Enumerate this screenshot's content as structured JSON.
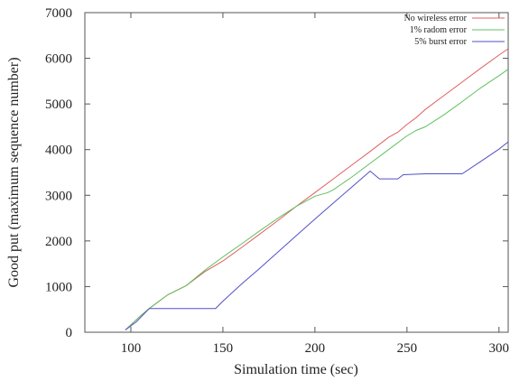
{
  "chart_data": {
    "type": "line",
    "title": "",
    "xlabel": "Simulation time (sec)",
    "ylabel": "Good put (maximum sequence number)",
    "xlim": [
      75,
      305
    ],
    "ylim": [
      0,
      7000
    ],
    "xticks": [
      100,
      150,
      200,
      250,
      300
    ],
    "yticks": [
      0,
      1000,
      2000,
      3000,
      4000,
      5000,
      6000,
      7000
    ],
    "legend_position": "top-right",
    "grid": false,
    "series": [
      {
        "name": "No wireless error",
        "color": "#e06060",
        "points": [
          [
            97,
            50
          ],
          [
            105,
            350
          ],
          [
            110,
            520
          ],
          [
            120,
            820
          ],
          [
            130,
            1020
          ],
          [
            140,
            1320
          ],
          [
            150,
            1560
          ],
          [
            160,
            1850
          ],
          [
            170,
            2150
          ],
          [
            180,
            2450
          ],
          [
            190,
            2760
          ],
          [
            200,
            3060
          ],
          [
            210,
            3360
          ],
          [
            220,
            3660
          ],
          [
            230,
            3960
          ],
          [
            240,
            4270
          ],
          [
            245,
            4380
          ],
          [
            250,
            4550
          ],
          [
            255,
            4700
          ],
          [
            260,
            4880
          ],
          [
            270,
            5180
          ],
          [
            280,
            5480
          ],
          [
            290,
            5780
          ],
          [
            300,
            6070
          ],
          [
            305,
            6210
          ]
        ]
      },
      {
        "name": "1% radom error",
        "color": "#60c060",
        "points": [
          [
            97,
            50
          ],
          [
            105,
            350
          ],
          [
            110,
            520
          ],
          [
            120,
            820
          ],
          [
            130,
            1020
          ],
          [
            140,
            1350
          ],
          [
            150,
            1650
          ],
          [
            160,
            1930
          ],
          [
            170,
            2220
          ],
          [
            180,
            2500
          ],
          [
            190,
            2760
          ],
          [
            200,
            2980
          ],
          [
            207,
            3060
          ],
          [
            210,
            3120
          ],
          [
            220,
            3400
          ],
          [
            230,
            3700
          ],
          [
            240,
            4000
          ],
          [
            250,
            4300
          ],
          [
            255,
            4420
          ],
          [
            260,
            4500
          ],
          [
            270,
            4760
          ],
          [
            280,
            5050
          ],
          [
            290,
            5350
          ],
          [
            300,
            5620
          ],
          [
            305,
            5760
          ]
        ]
      },
      {
        "name": "5% burst error",
        "color": "#5050c8",
        "points": [
          [
            97,
            50
          ],
          [
            103,
            230
          ],
          [
            110,
            520
          ],
          [
            146,
            520
          ],
          [
            150,
            680
          ],
          [
            160,
            1050
          ],
          [
            170,
            1400
          ],
          [
            180,
            1760
          ],
          [
            190,
            2120
          ],
          [
            200,
            2480
          ],
          [
            210,
            2830
          ],
          [
            220,
            3180
          ],
          [
            230,
            3530
          ],
          [
            235,
            3360
          ],
          [
            245,
            3360
          ],
          [
            248,
            3450
          ],
          [
            260,
            3470
          ],
          [
            270,
            3470
          ],
          [
            280,
            3470
          ],
          [
            290,
            3740
          ],
          [
            300,
            4010
          ],
          [
            305,
            4170
          ]
        ]
      }
    ]
  }
}
